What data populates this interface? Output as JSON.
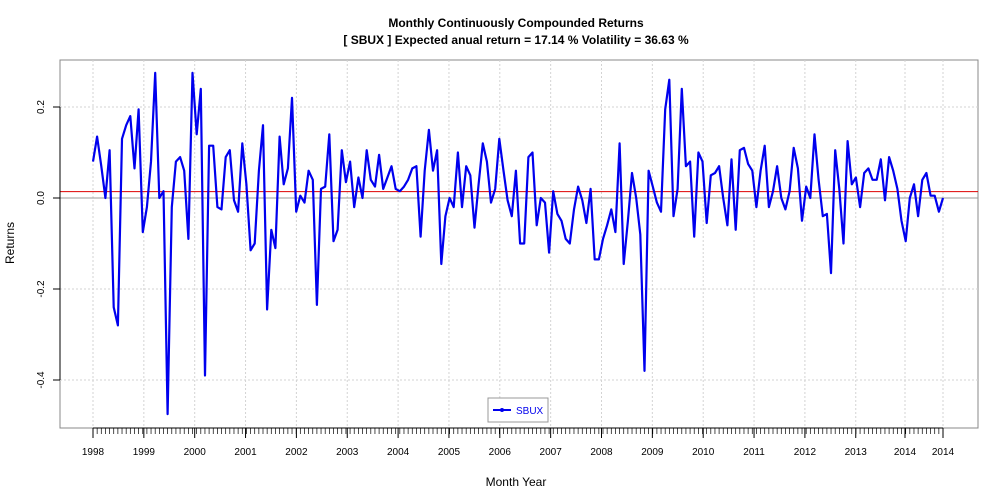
{
  "chart_data": {
    "type": "line",
    "title": "Monthly Continuously Compounded Returns",
    "subtitle": "[ SBUX ] Expected anual return = 17.14 % Volatility = 36.63 %",
    "xlabel": "Month Year",
    "ylabel": "Returns",
    "x_ticks": [
      "1998",
      "1999",
      "2000",
      "2001",
      "2002",
      "2003",
      "2004",
      "2005",
      "2006",
      "2007",
      "2008",
      "2009",
      "2010",
      "2011",
      "2012",
      "2013",
      "2014",
      "2014"
    ],
    "y_ticks": [
      "-0.4",
      "-0.2",
      "0.0",
      "0.2"
    ],
    "ylim": [
      -0.5,
      0.3
    ],
    "grid": true,
    "legend_position": "bottom-center",
    "reference_lines": [
      {
        "y": 0.0,
        "color": "#999999"
      },
      {
        "y": 0.014,
        "color": "#dd0000"
      }
    ],
    "series": [
      {
        "name": "SBUX",
        "color": "#0000ee",
        "values": [
          0.08,
          0.135,
          0.07,
          0.0,
          0.105,
          -0.24,
          -0.28,
          0.13,
          0.16,
          0.18,
          0.065,
          0.195,
          -0.075,
          -0.02,
          0.08,
          0.275,
          0.0,
          0.015,
          -0.475,
          -0.02,
          0.08,
          0.09,
          0.06,
          -0.09,
          0.275,
          0.14,
          0.24,
          -0.39,
          0.115,
          0.115,
          -0.02,
          -0.025,
          0.09,
          0.105,
          -0.005,
          -0.03,
          0.12,
          0.03,
          -0.115,
          -0.1,
          0.06,
          0.16,
          -0.245,
          -0.07,
          -0.11,
          0.135,
          0.03,
          0.065,
          0.22,
          -0.03,
          0.005,
          -0.01,
          0.06,
          0.04,
          -0.235,
          0.02,
          0.025,
          0.14,
          -0.095,
          -0.07,
          0.105,
          0.035,
          0.08,
          -0.02,
          0.045,
          0.0,
          0.105,
          0.04,
          0.025,
          0.095,
          0.02,
          0.045,
          0.07,
          0.02,
          0.015,
          0.025,
          0.04,
          0.065,
          0.07,
          -0.085,
          0.06,
          0.15,
          0.06,
          0.105,
          -0.145,
          -0.04,
          0.0,
          -0.02,
          0.1,
          -0.02,
          0.07,
          0.05,
          -0.065,
          0.03,
          0.12,
          0.08,
          -0.01,
          0.02,
          0.13,
          0.06,
          -0.005,
          -0.04,
          0.06,
          -0.1,
          -0.1,
          0.09,
          0.1,
          -0.06,
          0.0,
          -0.01,
          -0.12,
          0.015,
          -0.035,
          -0.05,
          -0.09,
          -0.1,
          -0.025,
          0.025,
          -0.005,
          -0.055,
          0.02,
          -0.135,
          -0.135,
          -0.09,
          -0.06,
          -0.025,
          -0.075,
          0.12,
          -0.145,
          -0.05,
          0.055,
          0.0,
          -0.08,
          -0.38,
          0.06,
          0.025,
          -0.01,
          -0.03,
          0.195,
          0.26,
          -0.04,
          0.02,
          0.24,
          0.07,
          0.08,
          -0.085,
          0.1,
          0.08,
          -0.055,
          0.05,
          0.055,
          0.07,
          0.0,
          -0.06,
          0.085,
          -0.07,
          0.105,
          0.11,
          0.075,
          0.06,
          -0.02,
          0.06,
          0.115,
          -0.02,
          0.015,
          0.07,
          0.0,
          -0.025,
          0.015,
          0.11,
          0.065,
          -0.05,
          0.025,
          0.0,
          0.14,
          0.04,
          -0.04,
          -0.035,
          -0.165,
          0.105,
          0.02,
          -0.1,
          0.125,
          0.03,
          0.045,
          -0.02,
          0.055,
          0.065,
          0.04,
          0.04,
          0.085,
          -0.005,
          0.09,
          0.06,
          0.02,
          -0.05,
          -0.095,
          0.0,
          0.03,
          -0.04,
          0.04,
          0.055,
          0.005,
          0.005,
          -0.03,
          0.0
        ]
      }
    ]
  }
}
